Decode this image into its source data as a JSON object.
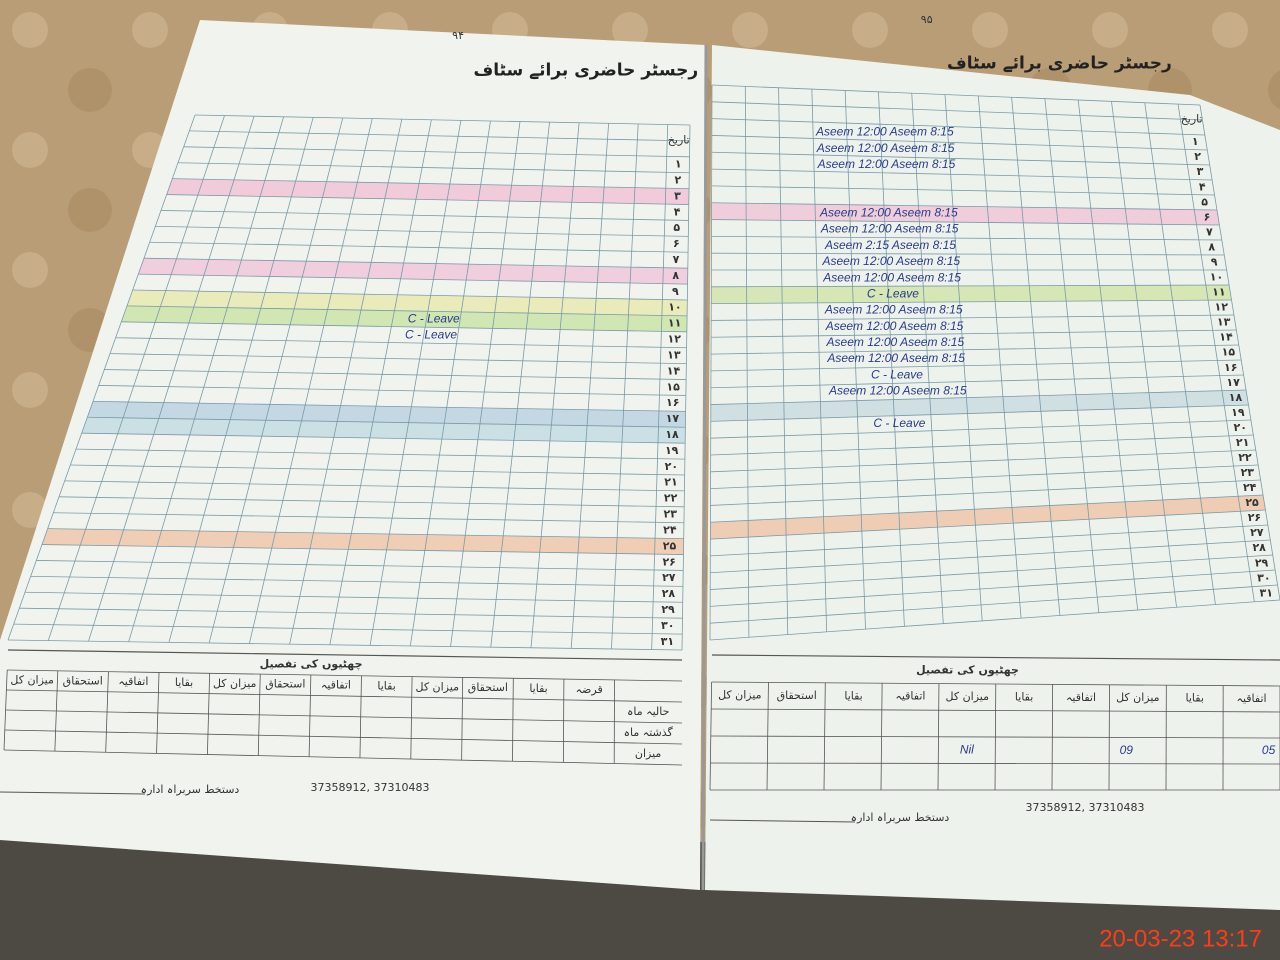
{
  "timestamp": "20-03-23 13:17",
  "left_page": {
    "page_number": "۹۴",
    "title": "رجسٹر حاضری برائے سٹاف",
    "date_header": "تاریخ",
    "rows": [
      {
        "number": "۱"
      },
      {
        "number": "۲"
      },
      {
        "number": "۳"
      },
      {
        "number": "۴"
      },
      {
        "number": "۵"
      },
      {
        "number": "۶"
      },
      {
        "number": "۷"
      },
      {
        "number": "۸"
      },
      {
        "number": "۹"
      },
      {
        "number": "۱۰"
      },
      {
        "number": "۱۱",
        "note": "C - Leave"
      },
      {
        "number": "۱۲",
        "note": "C - Leave"
      },
      {
        "number": "۱۳"
      },
      {
        "number": "۱۴"
      },
      {
        "number": "۱۵"
      },
      {
        "number": "۱۶"
      },
      {
        "number": "۱۷"
      },
      {
        "number": "۱۸"
      },
      {
        "number": "۱۹"
      },
      {
        "number": "۲۰"
      },
      {
        "number": "۲۱"
      },
      {
        "number": "۲۲"
      },
      {
        "number": "۲۳"
      },
      {
        "number": "۲۴"
      },
      {
        "number": "۲۵"
      },
      {
        "number": "۲۶"
      },
      {
        "number": "۲۷"
      },
      {
        "number": "۲۸"
      },
      {
        "number": "۲۹"
      },
      {
        "number": "۳۰"
      },
      {
        "number": "۳۱"
      }
    ],
    "leave_title": "چھٹیوں کی تفصیل",
    "leave_columns": [
      "قرضہ",
      "بقایا",
      "استحقاق",
      "میزان کل",
      "بقایا",
      "اتفاقیہ",
      "استحقاق",
      "میزان کل",
      "بقایا",
      "اتفاقیہ",
      "استحقاق",
      "میزان کل"
    ],
    "leave_rows": [
      "حالیہ ماہ",
      "گذشتہ ماہ",
      "میزان"
    ],
    "signature": "دستخط سربراہ ادارہ",
    "phones": "37358912, 37310483"
  },
  "right_page": {
    "page_number": "۹۵",
    "title": "رجسٹر حاضری برائے سٹاف",
    "date_header": "تاریخ",
    "rows": [
      {
        "number": "۱",
        "note": "Aseem 12:00 Aseem 8:15"
      },
      {
        "number": "۲",
        "note": "Aseem 12:00 Aseem 8:15"
      },
      {
        "number": "۳",
        "note": "Aseem 12:00 Aseem 8:15"
      },
      {
        "number": "۴"
      },
      {
        "number": "۵"
      },
      {
        "number": "۶",
        "note": "Aseem 12:00 Aseem 8:15"
      },
      {
        "number": "۷",
        "note": "Aseem 12:00 Aseem 8:15"
      },
      {
        "number": "۸",
        "note": "Aseem 2:15 Aseem 8:15"
      },
      {
        "number": "۹",
        "note": "Aseem 12:00 Aseem 8:15"
      },
      {
        "number": "۱۰",
        "note": "Aseem 12:00 Aseem 8:15"
      },
      {
        "number": "۱۱",
        "note": "C - Leave"
      },
      {
        "number": "۱۲",
        "note": "Aseem 12:00 Aseem 8:15"
      },
      {
        "number": "۱۳",
        "note": "Aseem 12:00 Aseem 8:15"
      },
      {
        "number": "۱۴",
        "note": "Aseem 12:00 Aseem 8:15"
      },
      {
        "number": "۱۵",
        "note": "Aseem 12:00 Aseem 8:15"
      },
      {
        "number": "۱۶",
        "note": "C - Leave"
      },
      {
        "number": "۱۷",
        "note": "Aseem 12:00 Aseem 8:15"
      },
      {
        "number": "۱۸"
      },
      {
        "number": "۱۹",
        "note": "C - Leave"
      },
      {
        "number": "۲۰"
      },
      {
        "number": "۲۱"
      },
      {
        "number": "۲۲"
      },
      {
        "number": "۲۳"
      },
      {
        "number": "۲۴"
      },
      {
        "number": "۲۵"
      },
      {
        "number": "۲۶"
      },
      {
        "number": "۲۷"
      },
      {
        "number": "۲۸"
      },
      {
        "number": "۲۹"
      },
      {
        "number": "۳۰"
      },
      {
        "number": "۳۱"
      }
    ],
    "leave_title": "چھٹیوں کی تفصیل",
    "leave_columns": [
      "اتفاقیہ",
      "بقایا",
      "میزان کل",
      "اتفاقیہ",
      "بقایا",
      "میزان کل",
      "اتفاقیہ",
      "بقایا",
      "استحقاق",
      "میزان کل"
    ],
    "leave_values": [
      "Nil",
      "09",
      "05"
    ],
    "signature": "دستخط سربراہ ادارہ",
    "phones": "37358912, 37310483"
  }
}
